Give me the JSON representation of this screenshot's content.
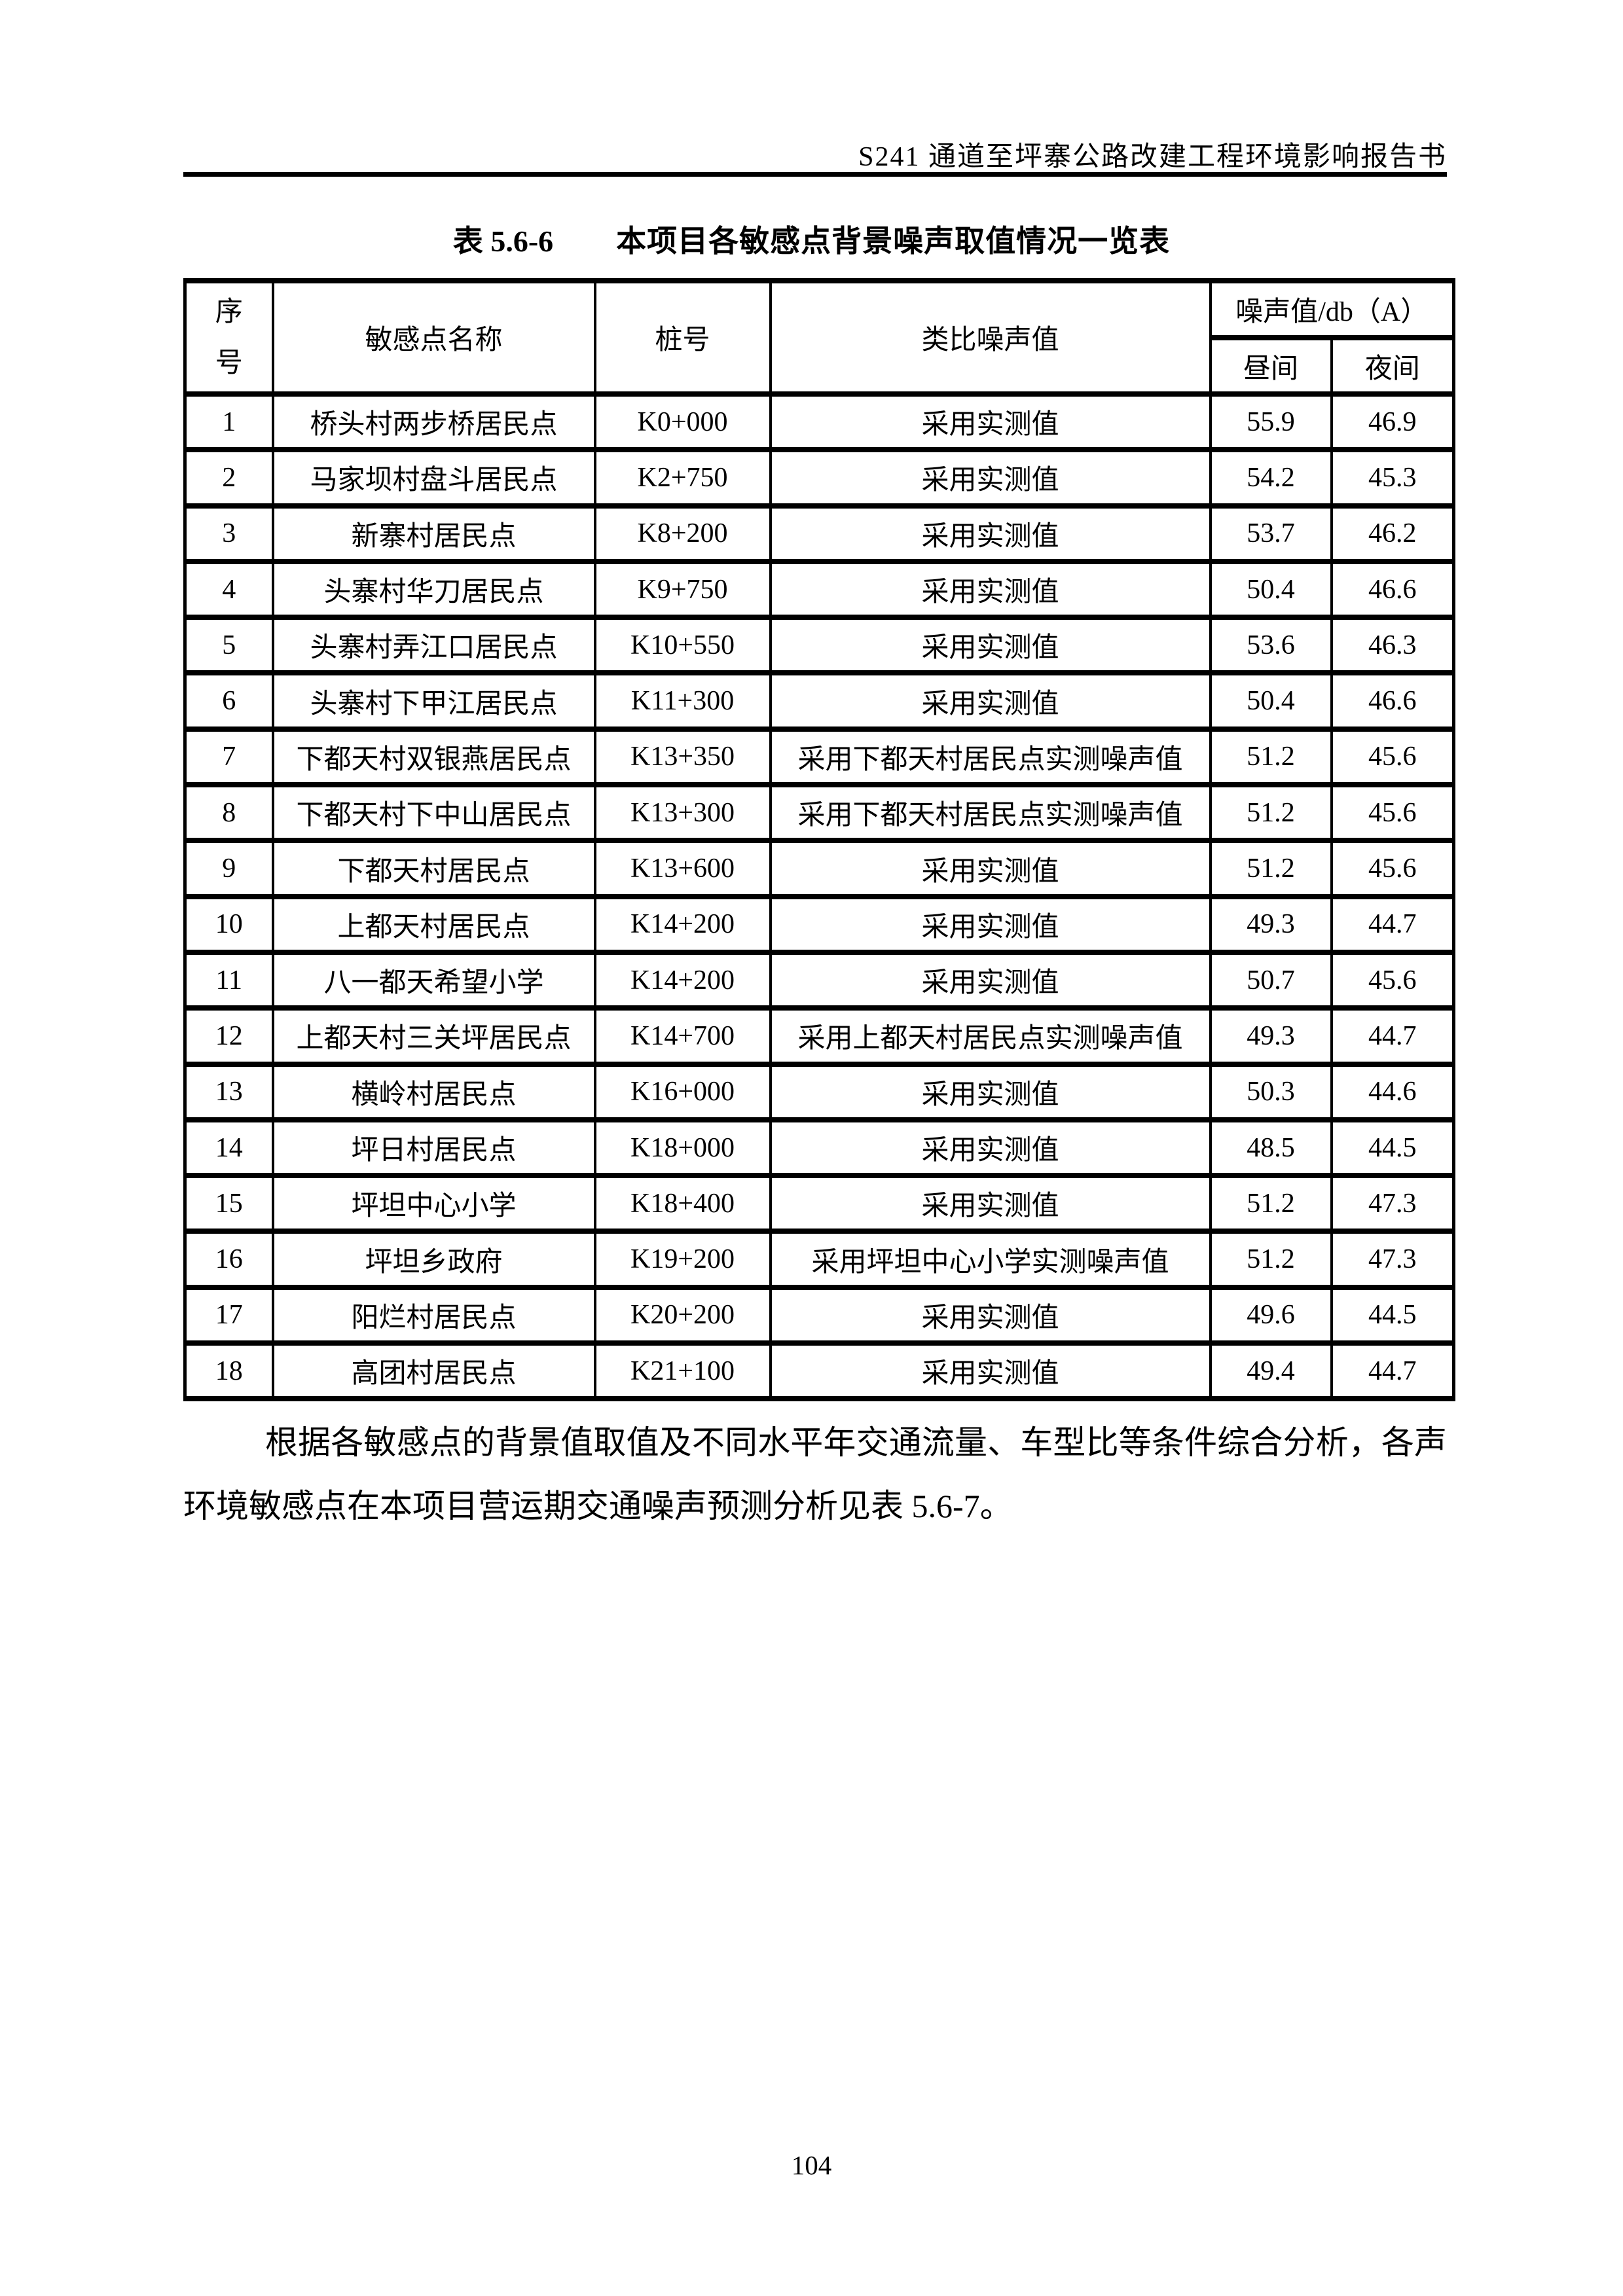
{
  "page": {
    "running_header": "S241 通道至坪寨公路改建工程环境影响报告书",
    "page_number": "104"
  },
  "caption": {
    "label": "表 5.6-6",
    "title": "本项目各敏感点背景噪声取值情况一览表"
  },
  "table": {
    "headers": {
      "index": "序号",
      "name": "敏感点名称",
      "stake": "桩号",
      "analog": "类比噪声值",
      "noise_group": "噪声值/db（A）",
      "day": "昼间",
      "night": "夜间"
    },
    "rows": [
      {
        "index": "1",
        "name": "桥头村两步桥居民点",
        "stake": "K0+000",
        "analog": "采用实测值",
        "day": "55.9",
        "night": "46.9"
      },
      {
        "index": "2",
        "name": "马家坝村盘斗居民点",
        "stake": "K2+750",
        "analog": "采用实测值",
        "day": "54.2",
        "night": "45.3"
      },
      {
        "index": "3",
        "name": "新寨村居民点",
        "stake": "K8+200",
        "analog": "采用实测值",
        "day": "53.7",
        "night": "46.2"
      },
      {
        "index": "4",
        "name": "头寨村华刀居民点",
        "stake": "K9+750",
        "analog": "采用实测值",
        "day": "50.4",
        "night": "46.6"
      },
      {
        "index": "5",
        "name": "头寨村弄江口居民点",
        "stake": "K10+550",
        "analog": "采用实测值",
        "day": "53.6",
        "night": "46.3"
      },
      {
        "index": "6",
        "name": "头寨村下甲江居民点",
        "stake": "K11+300",
        "analog": "采用实测值",
        "day": "50.4",
        "night": "46.6"
      },
      {
        "index": "7",
        "name": "下都天村双银燕居民点",
        "stake": "K13+350",
        "analog": "采用下都天村居民点实测噪声值",
        "day": "51.2",
        "night": "45.6"
      },
      {
        "index": "8",
        "name": "下都天村下中山居民点",
        "stake": "K13+300",
        "analog": "采用下都天村居民点实测噪声值",
        "day": "51.2",
        "night": "45.6"
      },
      {
        "index": "9",
        "name": "下都天村居民点",
        "stake": "K13+600",
        "analog": "采用实测值",
        "day": "51.2",
        "night": "45.6"
      },
      {
        "index": "10",
        "name": "上都天村居民点",
        "stake": "K14+200",
        "analog": "采用实测值",
        "day": "49.3",
        "night": "44.7"
      },
      {
        "index": "11",
        "name": "八一都天希望小学",
        "stake": "K14+200",
        "analog": "采用实测值",
        "day": "50.7",
        "night": "45.6"
      },
      {
        "index": "12",
        "name": "上都天村三关坪居民点",
        "stake": "K14+700",
        "analog": "采用上都天村居民点实测噪声值",
        "day": "49.3",
        "night": "44.7"
      },
      {
        "index": "13",
        "name": "横岭村居民点",
        "stake": "K16+000",
        "analog": "采用实测值",
        "day": "50.3",
        "night": "44.6"
      },
      {
        "index": "14",
        "name": "坪日村居民点",
        "stake": "K18+000",
        "analog": "采用实测值",
        "day": "48.5",
        "night": "44.5"
      },
      {
        "index": "15",
        "name": "坪坦中心小学",
        "stake": "K18+400",
        "analog": "采用实测值",
        "day": "51.2",
        "night": "47.3"
      },
      {
        "index": "16",
        "name": "坪坦乡政府",
        "stake": "K19+200",
        "analog": "采用坪坦中心小学实测噪声值",
        "day": "51.2",
        "night": "47.3"
      },
      {
        "index": "17",
        "name": "阳烂村居民点",
        "stake": "K20+200",
        "analog": "采用实测值",
        "day": "49.6",
        "night": "44.5"
      },
      {
        "index": "18",
        "name": "高团村居民点",
        "stake": "K21+100",
        "analog": "采用实测值",
        "day": "49.4",
        "night": "44.7"
      }
    ]
  },
  "paragraph": "根据各敏感点的背景值取值及不同水平年交通流量、车型比等条件综合分析，各声环境敏感点在本项目营运期交通噪声预测分析见表 5.6-7。",
  "colors": {
    "ink": "#000000",
    "page_background": "#ffffff"
  }
}
